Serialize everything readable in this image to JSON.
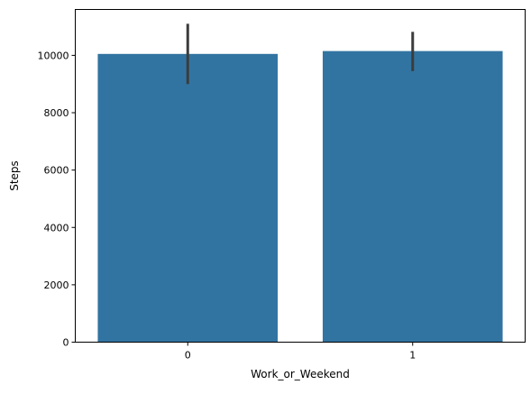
{
  "chart_data": {
    "type": "bar",
    "title": "",
    "xlabel": "Work_or_Weekend",
    "ylabel": "Steps",
    "categories": [
      "0",
      "1"
    ],
    "values": [
      10050,
      10150
    ],
    "error_bars": [
      {
        "low": 9000,
        "high": 11100
      },
      {
        "low": 9450,
        "high": 10820
      }
    ],
    "ylim": [
      0,
      11600
    ],
    "yticks": [
      0,
      2000,
      4000,
      6000,
      8000,
      10000
    ],
    "grid": false,
    "legend": "none",
    "colors": {
      "bar": "#3274a1",
      "error_bar": "#3c3c3c",
      "axis": "#000000"
    }
  }
}
